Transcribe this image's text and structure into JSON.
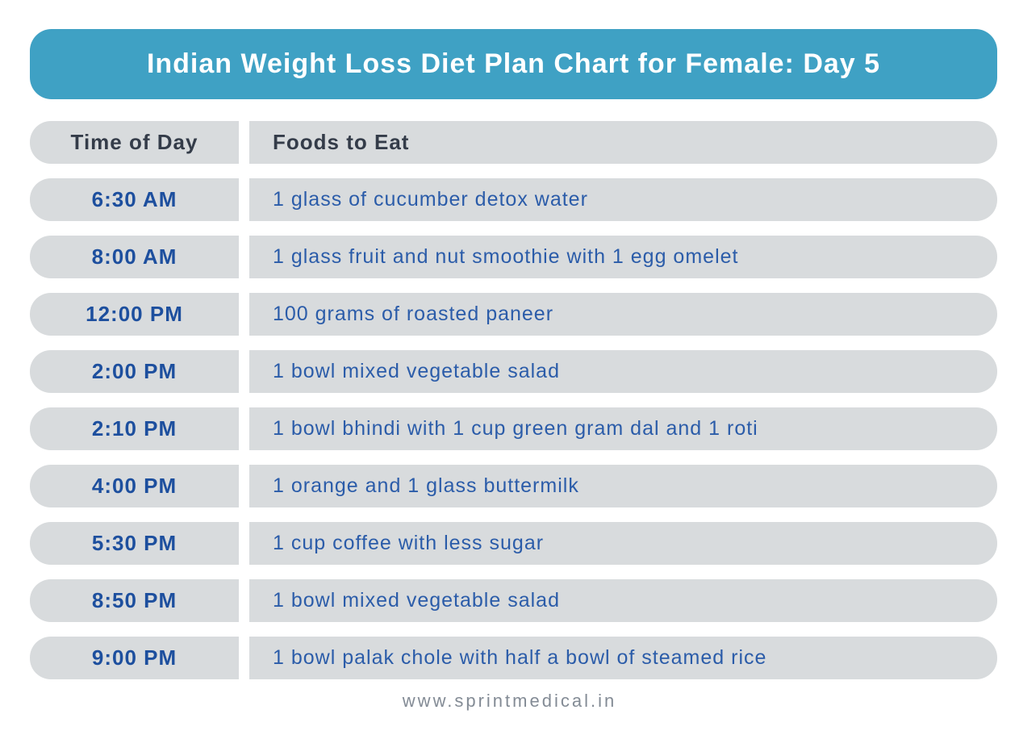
{
  "title": "Indian Weight Loss Diet Plan Chart for Female: Day 5",
  "chart_data": {
    "type": "table",
    "title": "Indian Weight Loss Diet Plan Chart for Female: Day 5",
    "columns": [
      "Time of Day",
      "Foods to Eat"
    ],
    "rows": [
      [
        "6:30 AM",
        "1 glass of cucumber detox water"
      ],
      [
        "8:00 AM",
        "1 glass fruit and nut smoothie with 1 egg omelet"
      ],
      [
        "12:00 PM",
        "100 grams of roasted paneer"
      ],
      [
        "2:00 PM",
        "1 bowl mixed vegetable salad"
      ],
      [
        "2:10 PM",
        "1 bowl bhindi with 1 cup green gram dal and 1 roti"
      ],
      [
        "4:00 PM",
        "1 orange and 1 glass buttermilk"
      ],
      [
        "5:30 PM",
        "1 cup coffee with less sugar"
      ],
      [
        "8:50 PM",
        "1 bowl mixed vegetable salad"
      ],
      [
        "9:00 PM",
        "1 bowl palak chole with half a bowl of steamed rice"
      ]
    ],
    "layout": "two-column rounded pill rows, header row + 9 data rows"
  },
  "colors": {
    "banner_background": "#3FA1C4",
    "banner_text": "#FFFFFF",
    "cell_background": "#D8DBDD",
    "header_text": "#343C49",
    "time_text": "#1D4F9E",
    "food_text": "#2B5CA9",
    "footer_text": "#838B95",
    "page_background": "#FFFFFF"
  },
  "footer": {
    "website": "www.sprintmedical.in"
  }
}
